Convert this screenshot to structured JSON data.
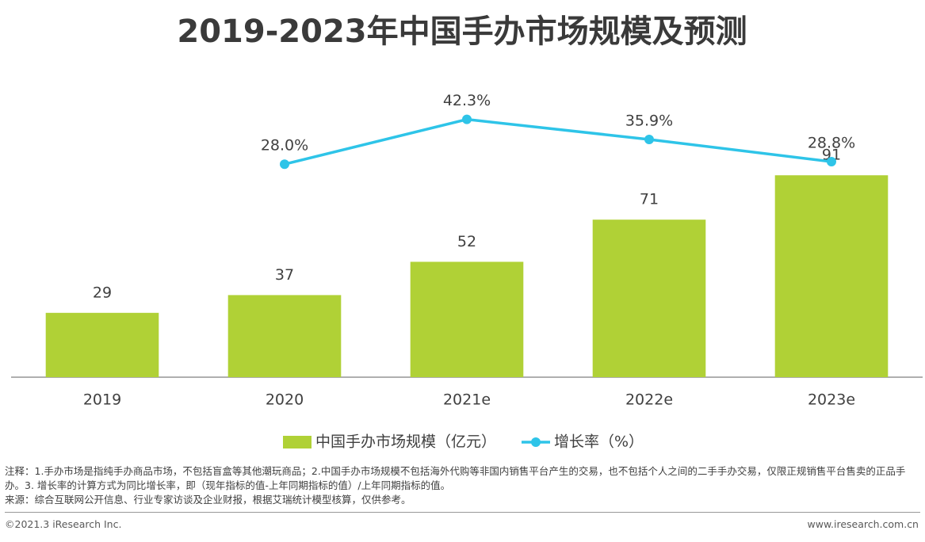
{
  "chart_data": {
    "type": "bar",
    "title": "2019-2023年中国手办市场规模及预测",
    "categories": [
      "2019",
      "2020",
      "2021e",
      "2022e",
      "2023e"
    ],
    "ylim": [
      0,
      120
    ],
    "y2lim": [
      -40,
      45
    ],
    "legend": "bottom",
    "series": [
      {
        "name": "中国手办市场规模（亿元）",
        "type": "bar",
        "color": "#b0d136",
        "values": [
          29,
          37,
          52,
          71,
          91
        ]
      },
      {
        "name": "增长率（%）",
        "type": "line",
        "axis": "y2",
        "color": "#2ec4e8",
        "values": [
          null,
          28.0,
          42.3,
          35.9,
          28.8
        ],
        "value_labels": [
          null,
          "28.0%",
          "42.3%",
          "35.9%",
          "28.8%"
        ]
      }
    ]
  },
  "notes": [
    "注释：1.手办市场是指纯手办商品市场，不包括盲盒等其他潮玩商品；2.中国手办市场规模不包括海外代购等非国内销售平台产生的交易，也不包括个人之间的二手手办交易，仅限正规销售平台售卖的正品手办。3. 增长率的计算方式为同比增长率，即（现年指标的值-上年同期指标的值）/上年同期指标的值。",
    "来源：综合互联网公开信息、行业专家访谈及企业财报，根据艾瑞统计模型核算，仅供参考。"
  ],
  "footer": {
    "left": "©2021.3 iResearch Inc.",
    "right": "www.iresearch.com.cn"
  }
}
